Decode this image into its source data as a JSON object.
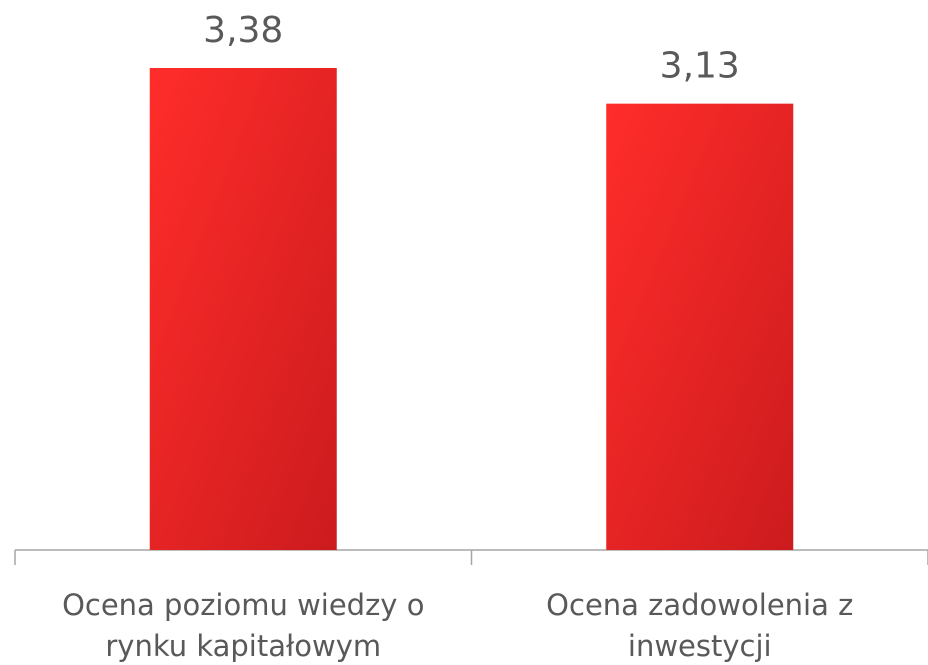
{
  "chart_data": {
    "type": "bar",
    "categories": [
      "Ocena poziomu wiedzy o rynku kapitałowym",
      "Ocena zadowolenia z inwestycji"
    ],
    "values": [
      3.38,
      3.13
    ],
    "value_labels": [
      "3,38",
      "3,13"
    ],
    "color": "#e8231f"
  }
}
